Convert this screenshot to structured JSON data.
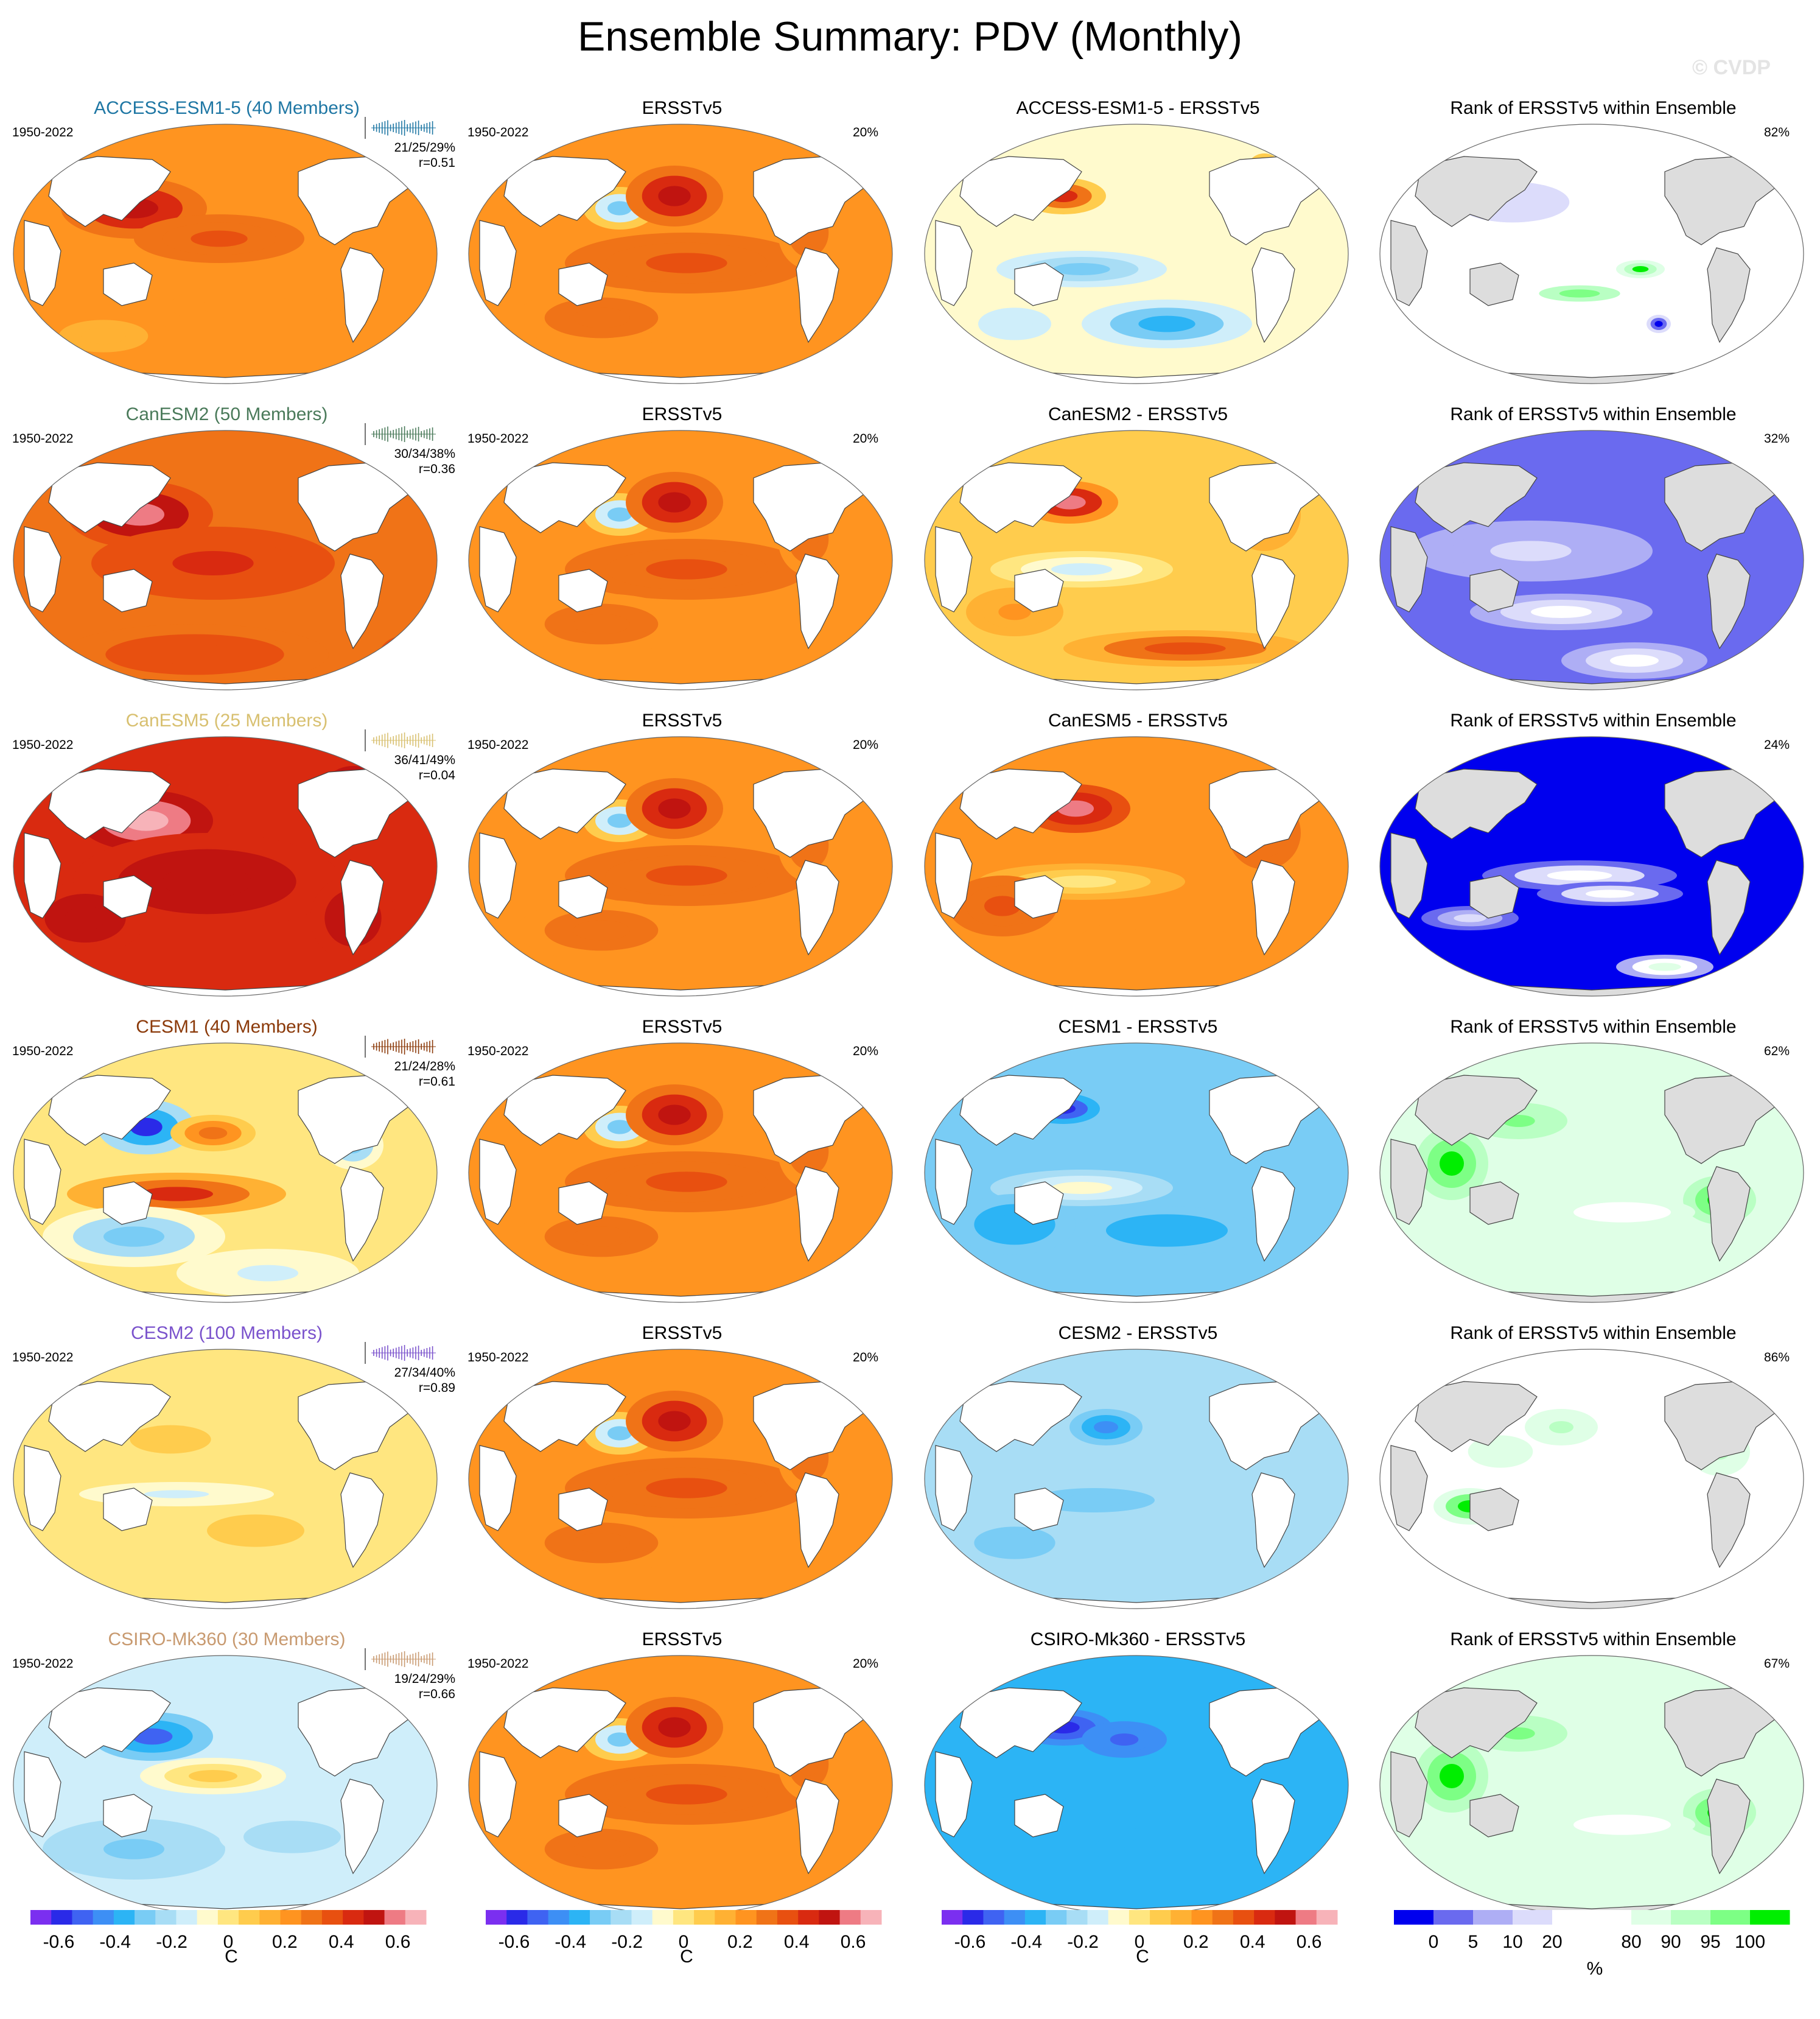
{
  "page": {
    "title": "Ensemble Summary: PDV (Monthly)",
    "watermark": "© CVDP",
    "period": "1950-2022"
  },
  "colors": {
    "diverging_scale": [
      "#7b2ff0",
      "#2a2ae8",
      "#3f63f2",
      "#3d8ff5",
      "#2cb4f5",
      "#79ccf5",
      "#a8ddf5",
      "#cfeefa",
      "#fffacd",
      "#ffe680",
      "#ffcc4d",
      "#ffb133",
      "#ff9420",
      "#f07317",
      "#e85010",
      "#d92a10",
      "#c01410",
      "#ee7b84",
      "#f7b3b9"
    ],
    "rank_scale": [
      "#0000ee",
      "#6a6aef",
      "#aeaef5",
      "#dcdcfb",
      "#ffffff",
      "#ffffff",
      "#dfffe6",
      "#b9ffc3",
      "#7dff85",
      "#00ee00"
    ],
    "land": "#dddddd",
    "coast": "#444444"
  },
  "rows": [
    {
      "model_title": "ACCESS-ESM1-5 (40 Members)",
      "model_color": "#1f77a4",
      "stats_pct": "21/25/29%",
      "stats_r": "r=0.51",
      "obs_title": "ERSSTv5",
      "obs_pct": "20%",
      "diff_title": "ACCESS-ESM1-5 - ERSSTv5",
      "rank_title": "Rank of ERSSTv5 within Ensemble",
      "rank_pct": "82%",
      "model_pattern": "warm-north",
      "diff_pattern": "mixed-cool",
      "rank_pattern": "mixed-light"
    },
    {
      "model_title": "CanESM2 (50 Members)",
      "model_color": "#4a7a5a",
      "stats_pct": "30/34/38%",
      "stats_r": "r=0.36",
      "obs_title": "ERSSTv5",
      "obs_pct": "20%",
      "diff_title": "CanESM2 - ERSSTv5",
      "rank_title": "Rank of ERSSTv5 within Ensemble",
      "rank_pct": "32%",
      "model_pattern": "hot",
      "diff_pattern": "mixed-warm",
      "rank_pattern": "medium-blue"
    },
    {
      "model_title": "CanESM5 (25 Members)",
      "model_color": "#d8c070",
      "stats_pct": "36/41/49%",
      "stats_r": "r=0.04",
      "obs_title": "ERSSTv5",
      "obs_pct": "20%",
      "diff_title": "CanESM5 - ERSSTv5",
      "rank_title": "Rank of ERSSTv5 within Ensemble",
      "rank_pct": "24%",
      "model_pattern": "very-hot",
      "diff_pattern": "warm",
      "rank_pattern": "deep-blue"
    },
    {
      "model_title": "CESM1 (40 Members)",
      "model_color": "#8b3a0a",
      "stats_pct": "21/24/28%",
      "stats_r": "r=0.61",
      "obs_title": "ERSSTv5",
      "obs_pct": "20%",
      "diff_title": "CESM1 - ERSSTv5",
      "rank_title": "Rank of ERSSTv5 within Ensemble",
      "rank_pct": "62%",
      "model_pattern": "pdo-mixed",
      "diff_pattern": "cool",
      "rank_pattern": "green-light"
    },
    {
      "model_title": "CESM2 (100 Members)",
      "model_color": "#7a52cc",
      "stats_pct": "27/34/40%",
      "stats_r": "r=0.89",
      "obs_title": "ERSSTv5",
      "obs_pct": "20%",
      "diff_title": "CESM2 - ERSSTv5",
      "rank_title": "Rank of ERSSTv5 within Ensemble",
      "rank_pct": "86%",
      "model_pattern": "weak",
      "diff_pattern": "cool-light",
      "rank_pattern": "green-white"
    },
    {
      "model_title": "CSIRO-Mk360 (30 Members)",
      "model_color": "#c89a70",
      "stats_pct": "19/24/29%",
      "stats_r": "r=0.66",
      "obs_title": "ERSSTv5",
      "obs_pct": "20%",
      "diff_title": "CSIRO-Mk360 - ERSSTv5",
      "rank_title": "Rank of ERSSTv5 within Ensemble",
      "rank_pct": "67%",
      "model_pattern": "pdo-cool",
      "diff_pattern": "cool-strong",
      "rank_pattern": "green-light"
    }
  ],
  "colorbars": [
    {
      "ticks": [
        "-0.6",
        "-0.4",
        "-0.2",
        "0",
        "0.2",
        "0.4",
        "0.6"
      ],
      "tick_values": [
        -0.6,
        -0.4,
        -0.2,
        0,
        0.2,
        0.4,
        0.6
      ],
      "unit": "C",
      "kind": "diverging"
    },
    {
      "ticks": [
        "-0.6",
        "-0.4",
        "-0.2",
        "0",
        "0.2",
        "0.4",
        "0.6"
      ],
      "tick_values": [
        -0.6,
        -0.4,
        -0.2,
        0,
        0.2,
        0.4,
        0.6
      ],
      "unit": "C",
      "kind": "diverging"
    },
    {
      "ticks": [
        "-0.6",
        "-0.4",
        "-0.2",
        "0",
        "0.2",
        "0.4",
        "0.6"
      ],
      "tick_values": [
        -0.6,
        -0.4,
        -0.2,
        0,
        0.2,
        0.4,
        0.6
      ],
      "unit": "C",
      "kind": "diverging"
    },
    {
      "ticks": [
        "0",
        "5",
        "10",
        "20",
        "80",
        "90",
        "95",
        "100"
      ],
      "unit": "%",
      "kind": "rank"
    }
  ]
}
